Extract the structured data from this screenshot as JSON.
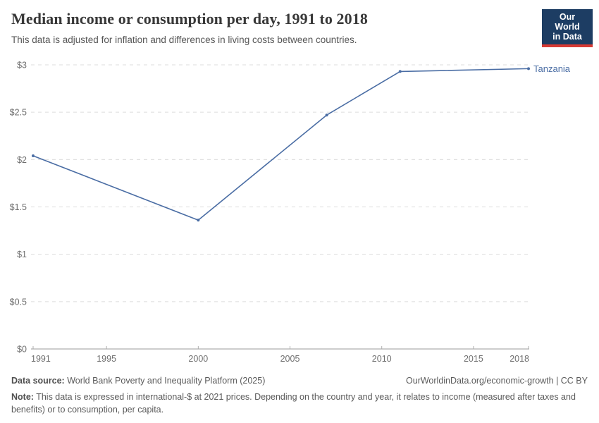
{
  "header": {
    "title": "Median income or consumption per day, 1991 to 2018",
    "subtitle": "This data is adjusted for inflation and differences in living costs between countries.",
    "logo": {
      "line1": "Our World",
      "line2": "in Data",
      "bg_color": "#1d3d63",
      "accent_color": "#d73a34"
    }
  },
  "chart_data": {
    "type": "line",
    "title": "Median income or consumption per day, 1991 to 2018",
    "xlabel": "",
    "ylabel": "",
    "xlim": [
      1991,
      2018
    ],
    "ylim": [
      0,
      3
    ],
    "x_ticks": [
      1991,
      1995,
      2000,
      2005,
      2010,
      2015,
      2018
    ],
    "y_ticks": [
      0,
      0.5,
      1,
      1.5,
      2,
      2.5,
      3
    ],
    "y_tick_prefix": "$",
    "grid": "horizontal-dashed",
    "legend_position": "end-of-line-label",
    "series": [
      {
        "name": "Tanzania",
        "color": "#4a6da4",
        "points": [
          {
            "x": 1991,
            "y": 2.04
          },
          {
            "x": 2000,
            "y": 1.36
          },
          {
            "x": 2007,
            "y": 2.47
          },
          {
            "x": 2011,
            "y": 2.93
          },
          {
            "x": 2018,
            "y": 2.96
          }
        ]
      }
    ],
    "colors": {
      "grid": "#dcdcdc",
      "axis": "#9b9b9b",
      "tick": "#adadad",
      "tick_label": "#6e6e6e"
    }
  },
  "footer": {
    "datasource_label": "Data source:",
    "datasource_text": " World Bank Poverty and Inequality Platform (2025)",
    "rights": "OurWorldinData.org/economic-growth | CC BY",
    "note_label": "Note:",
    "note_text": " This data is expressed in international-$ at 2021 prices. Depending on the country and year, it relates to income (measured after taxes and benefits) or to consumption, per capita."
  }
}
